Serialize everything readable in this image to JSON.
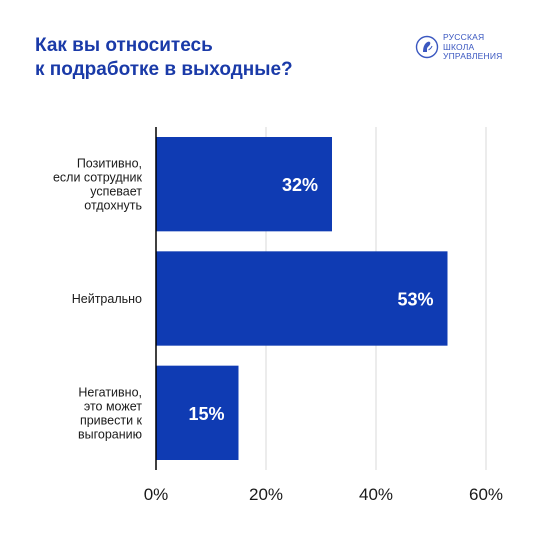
{
  "title_lines": [
    "Как вы относитесь",
    "к подработке в выходные?"
  ],
  "logo": {
    "lines": [
      "РУССКАЯ",
      "ШКОЛА",
      "УПРАВЛЕНИЯ"
    ],
    "icon": "rsu-emblem-icon"
  },
  "colors": {
    "bar": "#0f3bb3",
    "title": "#1a3aa8",
    "grid": "#d9d9d9",
    "axis": "#000000",
    "text": "#1a1a1a"
  },
  "chart_data": {
    "type": "bar",
    "orientation": "horizontal",
    "categories": [
      [
        "Позитивно,",
        "если сотрудник",
        "успевает",
        "отдохнуть"
      ],
      [
        "Нейтрально"
      ],
      [
        "Негативно,",
        "это может",
        "привести к",
        "выгоранию"
      ]
    ],
    "values": [
      32,
      53,
      15
    ],
    "value_labels": [
      "32%",
      "53%",
      "15%"
    ],
    "xticks": [
      "0%",
      "20%",
      "40%",
      "60%"
    ],
    "xtick_values": [
      0,
      20,
      40,
      60
    ],
    "xlim": [
      0,
      60
    ],
    "grid": true
  }
}
